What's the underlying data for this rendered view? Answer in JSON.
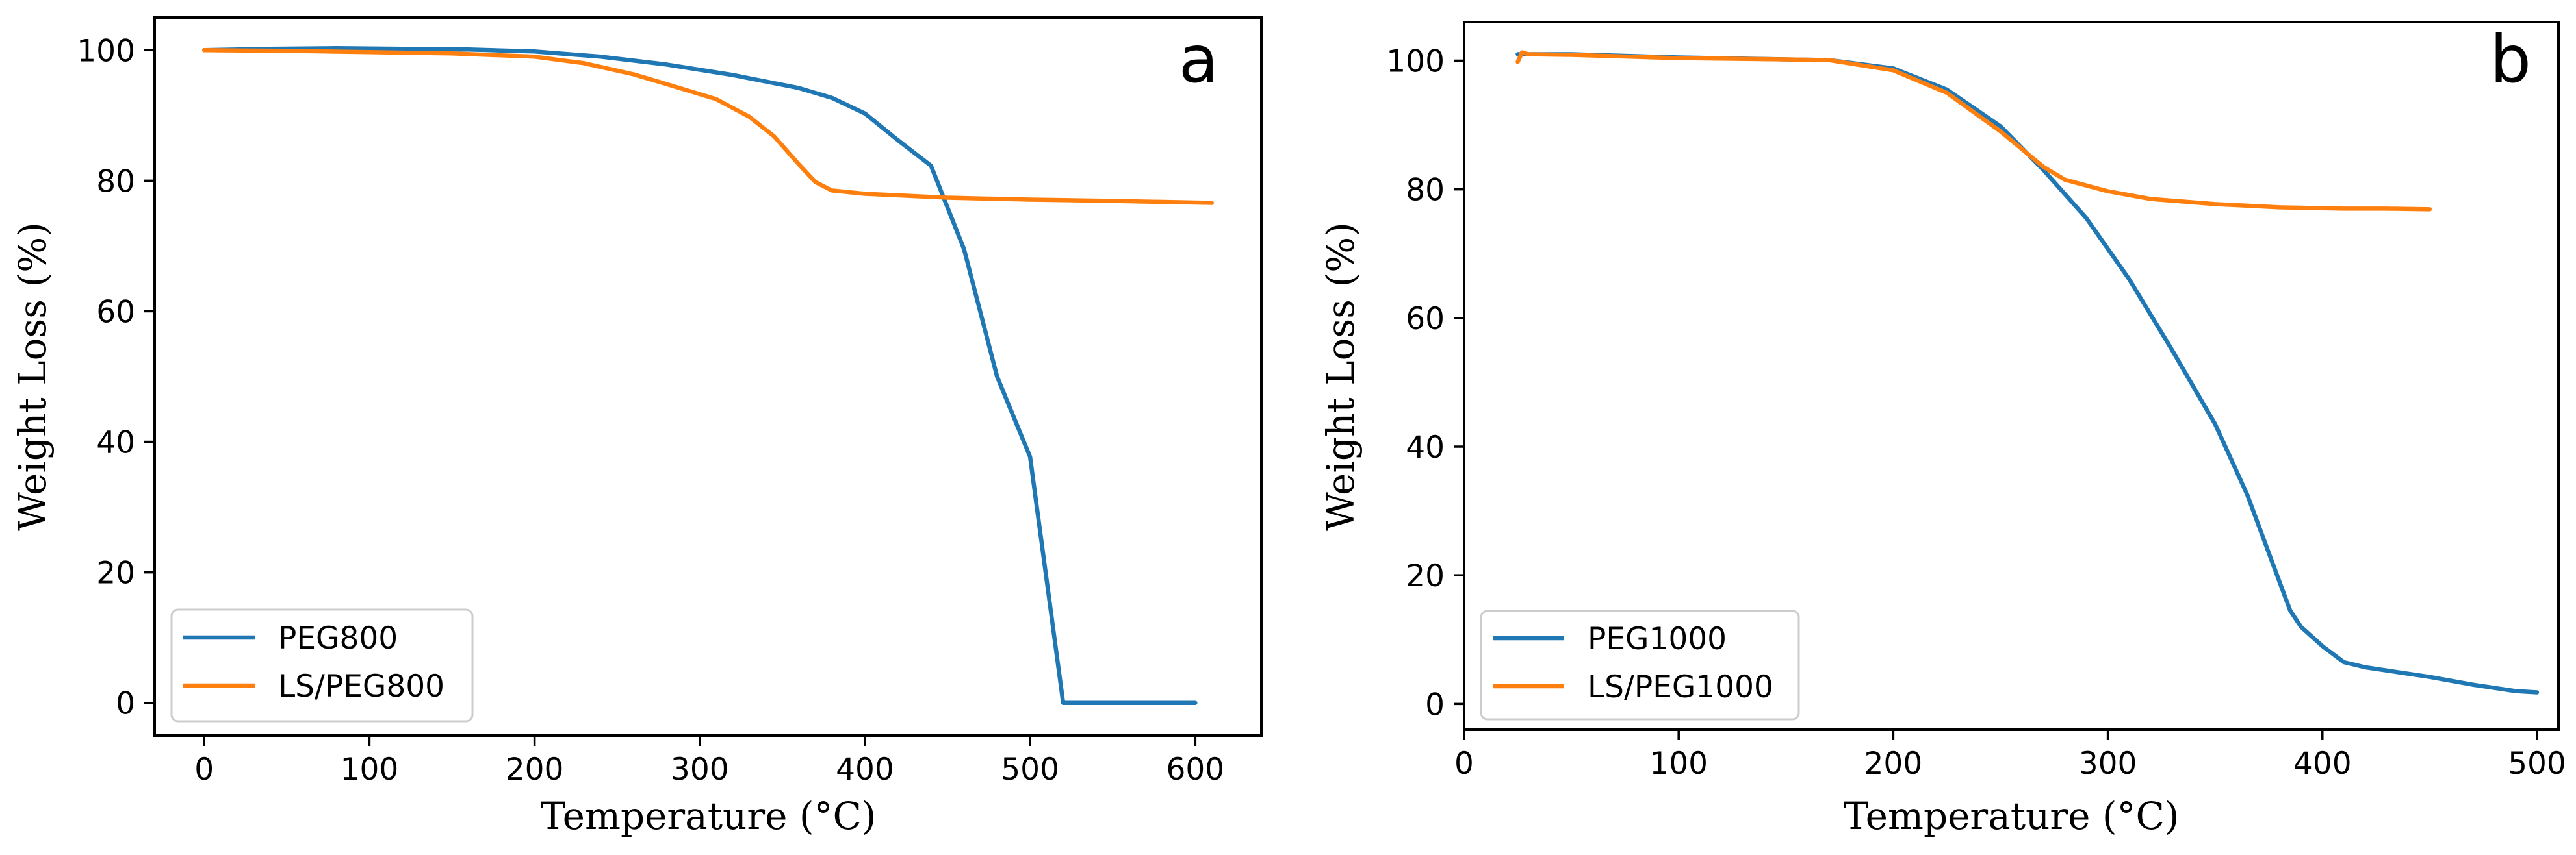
{
  "chart_data": [
    {
      "type": "line",
      "panel_label": "a",
      "xlabel": "Temperature (°C)",
      "ylabel": "Weight Loss (%)",
      "xlim": [
        -30,
        640
      ],
      "ylim": [
        -5,
        105
      ],
      "xticks": [
        0,
        100,
        200,
        300,
        400,
        500,
        600
      ],
      "yticks": [
        0,
        20,
        40,
        60,
        80,
        100
      ],
      "grid": false,
      "legend_position": "lower-left",
      "series": [
        {
          "name": "PEG800",
          "color": "#1f77b4",
          "x": [
            0,
            40,
            80,
            120,
            160,
            200,
            240,
            280,
            320,
            360,
            380,
            400,
            420,
            440,
            460,
            480,
            500,
            520,
            540,
            560,
            580,
            600
          ],
          "y": [
            100,
            100.2,
            100.3,
            100.2,
            100.1,
            99.8,
            99,
            97.8,
            96.2,
            94.2,
            92.7,
            90.3,
            86.2,
            82.3,
            69.5,
            50,
            37.7,
            0,
            0,
            0,
            0,
            0
          ]
        },
        {
          "name": "LS/PEG800",
          "color": "#ff7f0e",
          "x": [
            0,
            50,
            100,
            150,
            200,
            230,
            260,
            280,
            310,
            330,
            345,
            360,
            370,
            380,
            400,
            450,
            500,
            550,
            610
          ],
          "y": [
            100,
            99.9,
            99.7,
            99.5,
            99,
            98,
            96.3,
            94.8,
            92.5,
            89.8,
            86.8,
            82.5,
            79.8,
            78.5,
            78,
            77.4,
            77.1,
            76.9,
            76.6
          ]
        }
      ]
    },
    {
      "type": "line",
      "panel_label": "b",
      "xlabel": "Temperature (°C)",
      "ylabel": "Weight Loss (%)",
      "xlim": [
        0,
        510
      ],
      "ylim": [
        -4,
        106
      ],
      "xticks": [
        0,
        100,
        200,
        300,
        400,
        500
      ],
      "yticks": [
        0,
        20,
        40,
        60,
        80,
        100
      ],
      "grid": false,
      "legend_position": "lower-left",
      "series": [
        {
          "name": "PEG1000",
          "color": "#1f77b4",
          "x": [
            25,
            50,
            100,
            150,
            170,
            200,
            225,
            250,
            270,
            290,
            310,
            330,
            350,
            365,
            380,
            385,
            390,
            400,
            410,
            420,
            450,
            470,
            490,
            500
          ],
          "y": [
            101,
            101,
            100.5,
            100.2,
            100.1,
            98.8,
            95.5,
            89.8,
            83,
            75.5,
            66,
            55,
            43.5,
            32.5,
            19,
            14.5,
            12,
            9,
            6.5,
            5.7,
            4.2,
            3,
            2,
            1.8
          ]
        },
        {
          "name": "LS/PEG1000",
          "color": "#ff7f0e",
          "x": [
            25,
            27,
            30,
            50,
            100,
            150,
            170,
            200,
            225,
            250,
            270,
            280,
            300,
            320,
            350,
            380,
            410,
            430,
            450
          ],
          "y": [
            99.8,
            101.3,
            101,
            100.9,
            100.4,
            100.2,
            100.1,
            98.5,
            95,
            89,
            83.5,
            81.5,
            79.7,
            78.5,
            77.7,
            77.2,
            77,
            77,
            76.9
          ]
        }
      ]
    }
  ]
}
